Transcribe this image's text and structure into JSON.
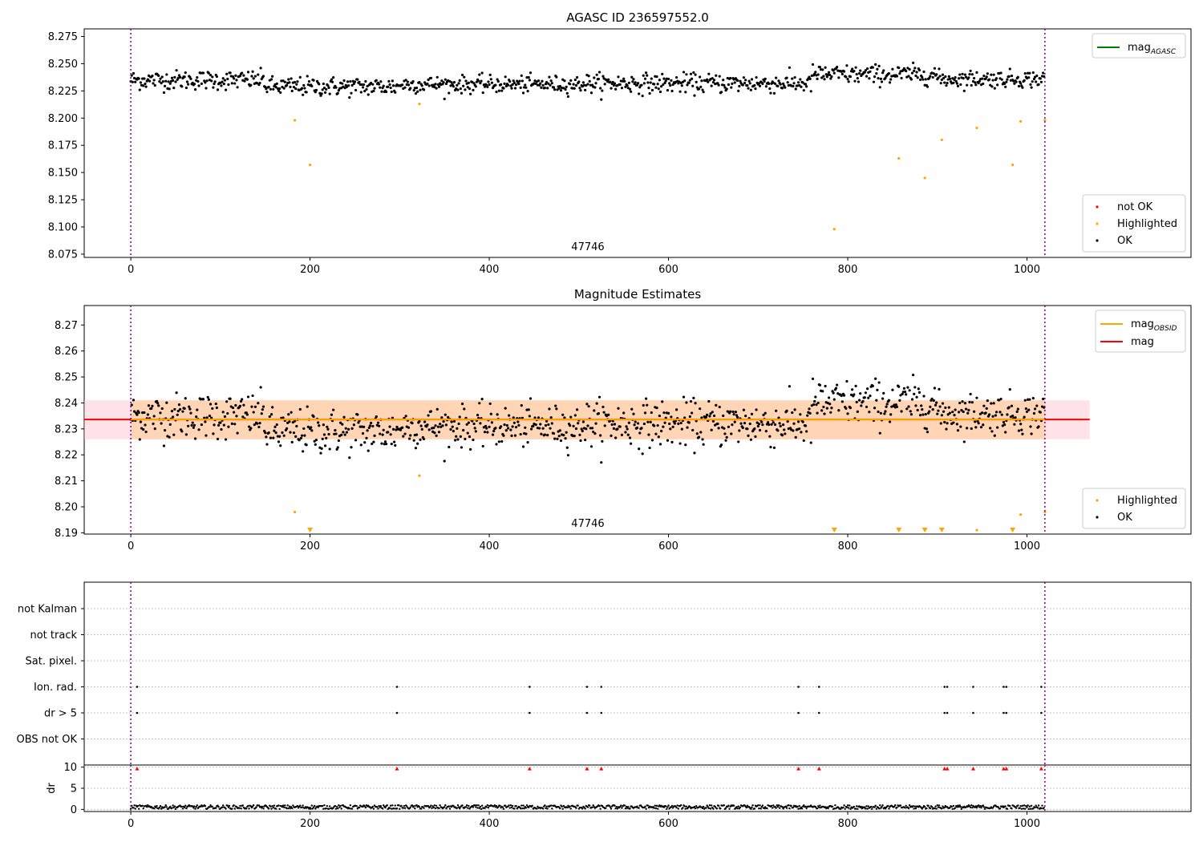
{
  "chart_data": [
    {
      "type": "scatter",
      "title": "AGASC ID 236597552.0",
      "xlim": [
        -52,
        1183
      ],
      "ylim": [
        8.072,
        8.282
      ],
      "xticks": [
        0,
        200,
        400,
        600,
        800,
        1000
      ],
      "yticks": [
        8.075,
        8.1,
        8.125,
        8.15,
        8.175,
        8.2,
        8.225,
        8.25,
        8.275
      ],
      "ytick_labels": [
        "8.075",
        "8.100",
        "8.125",
        "8.150",
        "8.175",
        "8.200",
        "8.225",
        "8.250",
        "8.275"
      ],
      "vlines": [
        0,
        1020
      ],
      "annotation": "47746",
      "line_legend": [
        {
          "label": "mag",
          "sub": "AGASC",
          "color": "#008000"
        }
      ],
      "point_legend": [
        {
          "label": "not OK",
          "color": "#ff0000"
        },
        {
          "label": "Highlighted",
          "color": "#ffa500"
        },
        {
          "label": "OK",
          "color": "#000000"
        }
      ],
      "ok_series": {
        "name": "OK",
        "segments": [
          {
            "x0": 0,
            "x1": 150,
            "center": 8.235,
            "spread": 0.008
          },
          {
            "x0": 150,
            "x1": 300,
            "center": 8.229,
            "spread": 0.008
          },
          {
            "x0": 300,
            "x1": 500,
            "center": 8.231,
            "spread": 0.007
          },
          {
            "x0": 500,
            "x1": 760,
            "center": 8.232,
            "spread": 0.008
          },
          {
            "x0": 760,
            "x1": 900,
            "center": 8.24,
            "spread": 0.008
          },
          {
            "x0": 900,
            "x1": 1022,
            "center": 8.236,
            "spread": 0.007
          }
        ],
        "count": 1020
      },
      "highlighted": [
        [
          183,
          8.198
        ],
        [
          200,
          8.157
        ],
        [
          322,
          8.213
        ],
        [
          785,
          8.098
        ],
        [
          857,
          8.163
        ],
        [
          886,
          8.145
        ],
        [
          905,
          8.18
        ],
        [
          944,
          8.191
        ],
        [
          984,
          8.157
        ],
        [
          993,
          8.197
        ],
        [
          1020,
          8.198
        ]
      ]
    },
    {
      "type": "scatter",
      "title": "Magnitude Estimates",
      "xlim": [
        -52,
        1183
      ],
      "ylim": [
        8.1895,
        8.2775
      ],
      "xticks": [
        0,
        200,
        400,
        600,
        800,
        1000
      ],
      "yticks": [
        8.19,
        8.2,
        8.21,
        8.22,
        8.23,
        8.24,
        8.25,
        8.26,
        8.27
      ],
      "ytick_labels": [
        "8.19",
        "8.20",
        "8.21",
        "8.22",
        "8.23",
        "8.24",
        "8.25",
        "8.26",
        "8.27"
      ],
      "vlines": [
        0,
        1020
      ],
      "annotation": "47746",
      "mag_obsid": 8.2336,
      "mag": 8.2336,
      "band": [
        8.226,
        8.241
      ],
      "band_x": [
        -52,
        1070
      ],
      "line_legend": [
        {
          "label": "mag",
          "sub": "OBSID",
          "color": "#ffa500"
        },
        {
          "label": "mag",
          "sub": "",
          "color": "#ff0000"
        }
      ],
      "point_legend": [
        {
          "label": "Highlighted",
          "color": "#ffa500"
        },
        {
          "label": "OK",
          "color": "#000000"
        }
      ],
      "highlighted": [
        [
          183,
          8.198
        ],
        [
          322,
          8.212
        ],
        [
          944,
          8.191
        ],
        [
          993,
          8.197
        ],
        [
          1020,
          8.198
        ]
      ],
      "below_range_markers": [
        200,
        785,
        857,
        886,
        905,
        984
      ]
    },
    {
      "type": "scatter",
      "xlim": [
        -52,
        1183
      ],
      "xticks": [
        0,
        200,
        400,
        600,
        800,
        1000
      ],
      "vlines": [
        0,
        1020
      ],
      "flag_rows": [
        "not Kalman",
        "not track",
        "Sat. pixel.",
        "Ion. rad.",
        "dr > 5",
        "OBS not OK"
      ],
      "flag_events": {
        "Ion. rad.": [
          7,
          297,
          445,
          509,
          525,
          745,
          768,
          908,
          911,
          940,
          974,
          977,
          1016
        ],
        "dr > 5": [
          7,
          297,
          445,
          509,
          525,
          745,
          768,
          908,
          911,
          940,
          974,
          977,
          1016
        ]
      },
      "dr_ylabel": "dr",
      "dr_yticks": [
        0,
        5,
        10
      ],
      "dr_ylim": [
        -0.5,
        10.5
      ],
      "dr_clipped": [
        7,
        297,
        445,
        509,
        525,
        745,
        768,
        908,
        911,
        940,
        974,
        977,
        1016
      ],
      "dr_baseline": 0.5
    }
  ]
}
